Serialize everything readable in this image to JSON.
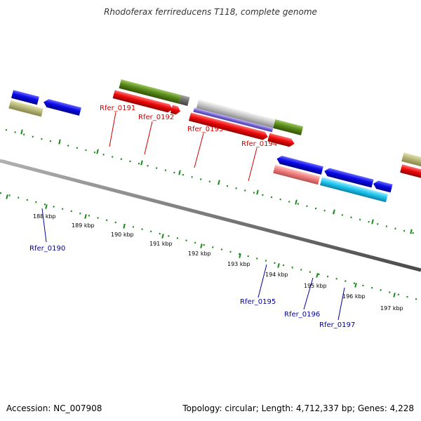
{
  "title": "Rhodoferax ferrireducens T118, complete genome",
  "footer": {
    "accession": "Accession: NC_007908",
    "summary": "Topology: circular; Length: 4,712,337 bp; Genes: 4,228"
  },
  "scale_labels": [
    "188 kbp",
    "189 kbp",
    "190 kbp",
    "191 kbp",
    "192 kbp",
    "193 kbp",
    "194 kbp",
    "195 kbp",
    "196 kbp",
    "197 kbp"
  ],
  "colors": {
    "backbone": "#7a7a7a",
    "tick": "#1a8a1a",
    "top_label": "#cc0000",
    "bottom_label": "#000099",
    "cds_blue": "#0a0ae8",
    "cds_red": "#ee0a0a",
    "cds_green": "#5a8a1a",
    "cds_khaki": "#b8b878",
    "cds_salmon": "#f08080",
    "cds_cyan": "#20c8f0",
    "cds_purple": "#7a6ad8",
    "cds_grey": "#c8c8c8"
  },
  "top_gene_labels": [
    {
      "label": "Rfer_0191"
    },
    {
      "label": "Rfer_0192"
    },
    {
      "label": "Rfer_0193"
    },
    {
      "label": "Rfer_0194"
    }
  ],
  "bottom_gene_labels": [
    {
      "label": "Rfer_0190"
    },
    {
      "label": "Rfer_0195"
    },
    {
      "label": "Rfer_0196"
    },
    {
      "label": "Rfer_0197"
    }
  ]
}
